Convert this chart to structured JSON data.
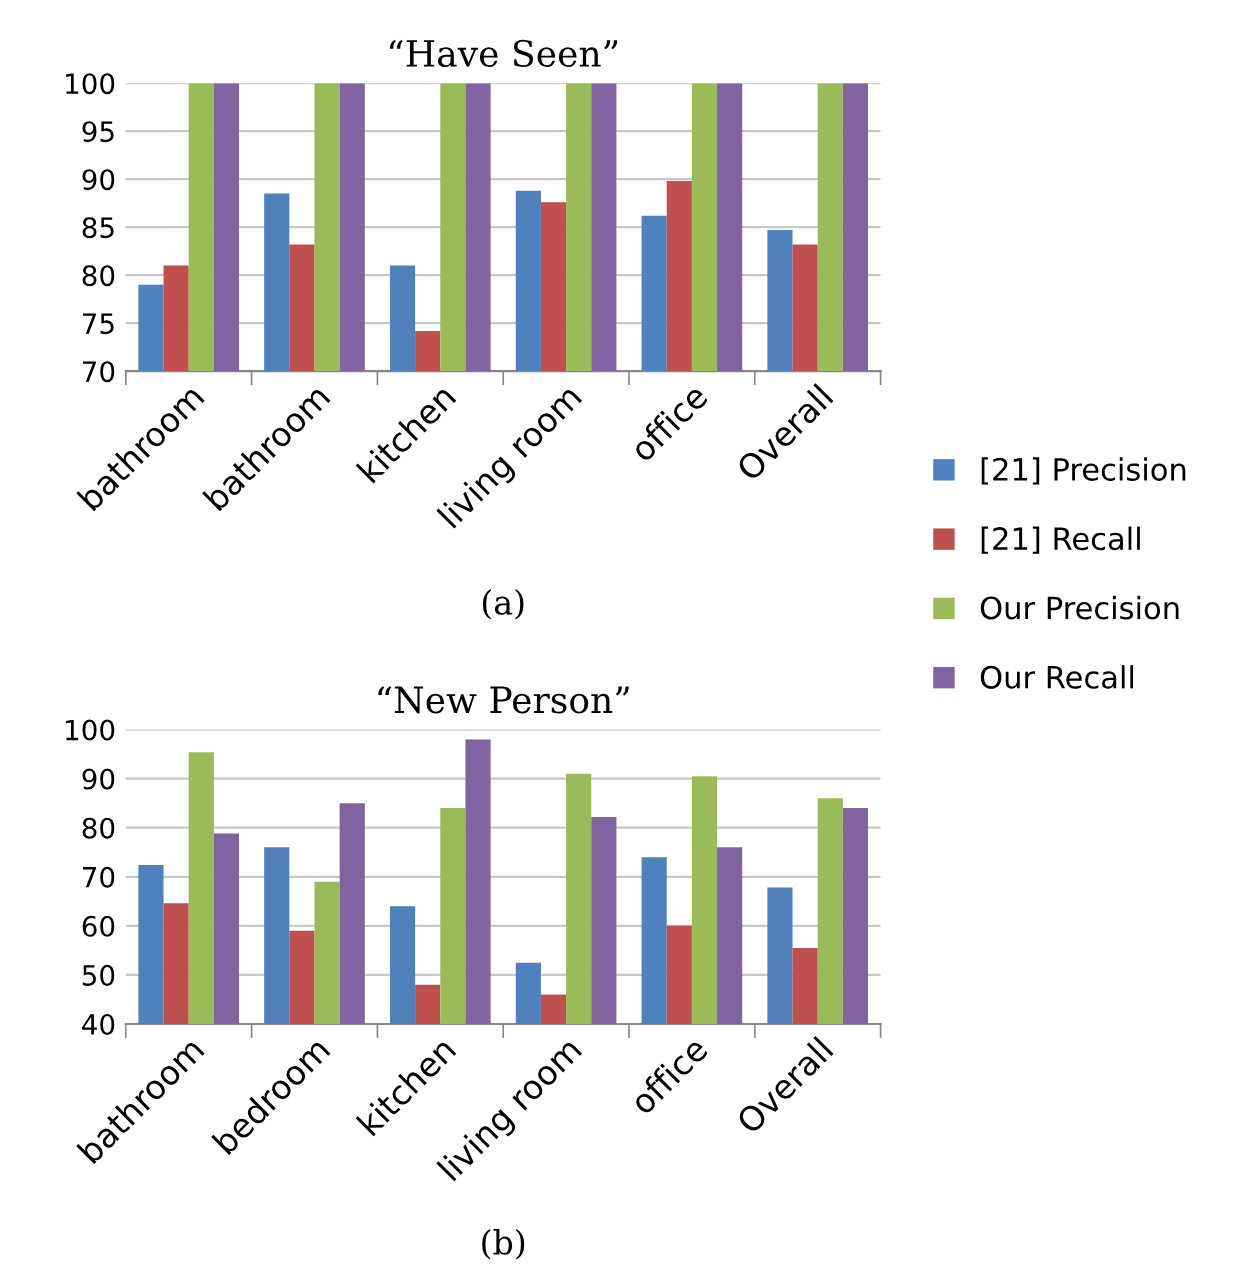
{
  "chart_data": [
    {
      "type": "bar",
      "title": "“Have Seen”",
      "categories": [
        "bathroom",
        "bathroom",
        "kitchen",
        "living room",
        "office",
        "Overall"
      ],
      "series": [
        {
          "name": "[21] Precision",
          "color": "#4f81bd",
          "values": [
            79,
            88.5,
            81,
            88.8,
            86.2,
            84.7
          ]
        },
        {
          "name": "[21] Recall",
          "color": "#c0504d",
          "values": [
            81,
            83.2,
            74.2,
            87.6,
            89.8,
            83.2
          ]
        },
        {
          "name": "Our Precision",
          "color": "#9bbb59",
          "values": [
            100,
            100,
            100,
            100,
            100,
            100
          ]
        },
        {
          "name": "Our Recall",
          "color": "#8064a2",
          "values": [
            100,
            100,
            100,
            100,
            100,
            100
          ]
        }
      ],
      "ylim": [
        70,
        100
      ],
      "yticks": [
        70,
        75,
        80,
        85,
        90,
        95,
        100
      ],
      "grid": "y",
      "legend": "right",
      "annotations": [
        "(a)"
      ]
    },
    {
      "type": "bar",
      "title": "“New Person”",
      "categories": [
        "bathroom",
        "bedroom",
        "kitchen",
        "living room",
        "office",
        "Overall"
      ],
      "series": [
        {
          "color": "#4f81bd",
          "values": [
            72.4,
            76,
            64,
            52.5,
            74,
            67.8
          ]
        },
        {
          "color": "#c0504d",
          "values": [
            64.6,
            59,
            48,
            46,
            60,
            55.5
          ]
        },
        {
          "color": "#9bbb59",
          "values": [
            95.4,
            69,
            84,
            91,
            90.5,
            86
          ]
        },
        {
          "color": "#8064a2",
          "values": [
            78.8,
            85,
            98,
            82.2,
            76,
            84
          ]
        }
      ],
      "ylim": [
        40,
        100
      ],
      "yticks": [
        40,
        50,
        60,
        70,
        80,
        90,
        100
      ],
      "grid": "y",
      "annotations": [
        "(b)"
      ]
    }
  ]
}
